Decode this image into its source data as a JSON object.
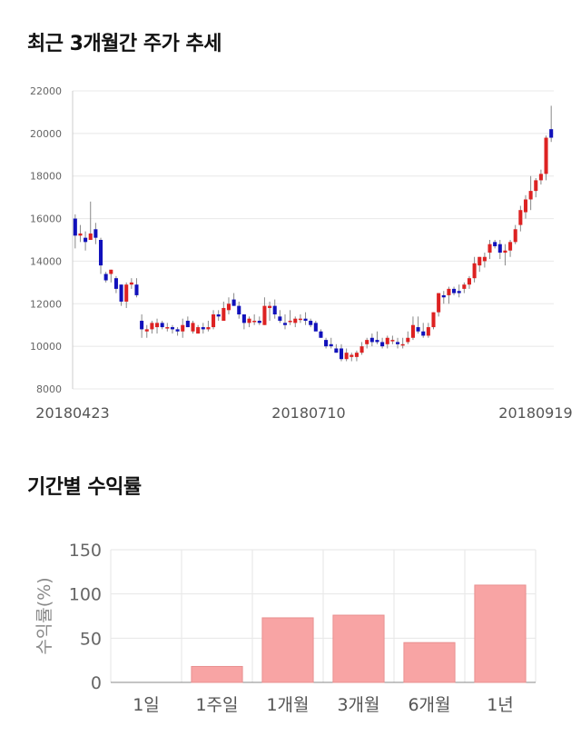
{
  "titles": {
    "price_chart": "최근 3개월간 주가 추세",
    "return_chart": "기간별 수익률"
  },
  "chart_data": [
    {
      "type": "candlestick",
      "title": "최근 3개월간 주가 추세",
      "ylim": [
        8000,
        22000
      ],
      "yticks": [
        8000,
        10000,
        12000,
        14000,
        16000,
        18000,
        20000,
        22000
      ],
      "xtick_labels": [
        "20180423",
        "20180710",
        "20180919"
      ],
      "grid": true,
      "colors": {
        "up": "#dd2222",
        "down": "#1111bb",
        "wick": "#888888"
      },
      "ohlc": [
        [
          16000,
          16200,
          14600,
          15200
        ],
        [
          15200,
          15700,
          14900,
          15300
        ],
        [
          15100,
          15400,
          14500,
          14900
        ],
        [
          15000,
          16800,
          15000,
          15300
        ],
        [
          15500,
          15800,
          14800,
          15100
        ],
        [
          15000,
          15100,
          13400,
          13800
        ],
        [
          13400,
          13500,
          13000,
          13100
        ],
        [
          13400,
          13600,
          13000,
          13600
        ],
        [
          13200,
          13300,
          12500,
          12700
        ],
        [
          12900,
          12900,
          11900,
          12100
        ],
        [
          12100,
          13000,
          11800,
          12900
        ],
        [
          12900,
          13200,
          12700,
          13000
        ],
        [
          12900,
          13200,
          12300,
          12400
        ],
        [
          11200,
          11500,
          10400,
          10800
        ],
        [
          10700,
          11000,
          10400,
          10800
        ],
        [
          10800,
          11200,
          10600,
          11100
        ],
        [
          10900,
          11300,
          10600,
          11100
        ],
        [
          11100,
          11200,
          10800,
          10900
        ],
        [
          10900,
          11100,
          10700,
          10900
        ],
        [
          10900,
          11000,
          10600,
          10800
        ],
        [
          10800,
          10900,
          10500,
          10700
        ],
        [
          10700,
          11300,
          10400,
          11000
        ],
        [
          11200,
          11400,
          10900,
          10900
        ],
        [
          10700,
          11200,
          10600,
          11100
        ],
        [
          10600,
          11000,
          10600,
          10900
        ],
        [
          10900,
          11100,
          10600,
          10800
        ],
        [
          10800,
          11200,
          10700,
          10900
        ],
        [
          10900,
          11700,
          10800,
          11500
        ],
        [
          11500,
          11700,
          11200,
          11400
        ],
        [
          11200,
          12100,
          11200,
          11800
        ],
        [
          11700,
          12300,
          11500,
          12000
        ],
        [
          12200,
          12500,
          11900,
          11900
        ],
        [
          11900,
          12100,
          11300,
          11500
        ],
        [
          11500,
          11500,
          10800,
          11100
        ],
        [
          11100,
          11400,
          10900,
          11300
        ],
        [
          11200,
          11500,
          11000,
          11200
        ],
        [
          11200,
          11400,
          11000,
          11100
        ],
        [
          11000,
          12300,
          11000,
          11900
        ],
        [
          11800,
          12100,
          11200,
          11900
        ],
        [
          11900,
          12200,
          11300,
          11500
        ],
        [
          11400,
          11700,
          11100,
          11200
        ],
        [
          11100,
          11500,
          10800,
          11000
        ],
        [
          11200,
          11700,
          11000,
          11200
        ],
        [
          11100,
          11400,
          10900,
          11300
        ],
        [
          11300,
          11500,
          11100,
          11300
        ],
        [
          11300,
          11600,
          11000,
          11200
        ],
        [
          11200,
          11300,
          10900,
          11000
        ],
        [
          11100,
          11200,
          10800,
          10700
        ],
        [
          10700,
          10800,
          10400,
          10400
        ],
        [
          10300,
          10400,
          9900,
          10000
        ],
        [
          10100,
          10400,
          9900,
          10000
        ],
        [
          9900,
          10100,
          9700,
          9700
        ],
        [
          9900,
          10100,
          9300,
          9400
        ],
        [
          9400,
          9900,
          9300,
          9700
        ],
        [
          9500,
          9700,
          9300,
          9600
        ],
        [
          9500,
          9800,
          9300,
          9700
        ],
        [
          9700,
          10200,
          9600,
          10000
        ],
        [
          10100,
          10400,
          9900,
          10300
        ],
        [
          10400,
          10600,
          10000,
          10200
        ],
        [
          10300,
          10700,
          10100,
          10200
        ],
        [
          10200,
          10400,
          9900,
          10000
        ],
        [
          10100,
          10500,
          9900,
          10400
        ],
        [
          10300,
          10500,
          10100,
          10300
        ],
        [
          10200,
          10400,
          9900,
          10100
        ],
        [
          10100,
          10400,
          9900,
          10100
        ],
        [
          10200,
          10700,
          10100,
          10400
        ],
        [
          10400,
          11400,
          10300,
          11000
        ],
        [
          10900,
          11400,
          10600,
          10700
        ],
        [
          10700,
          11100,
          10400,
          10500
        ],
        [
          10500,
          11100,
          10400,
          10900
        ],
        [
          10900,
          11600,
          10800,
          11600
        ],
        [
          11600,
          12500,
          11400,
          12500
        ],
        [
          12400,
          12600,
          12000,
          12300
        ],
        [
          12400,
          12800,
          12000,
          12700
        ],
        [
          12700,
          12800,
          12400,
          12500
        ],
        [
          12600,
          12900,
          12300,
          12500
        ],
        [
          12700,
          13000,
          12500,
          12900
        ],
        [
          12900,
          13300,
          12700,
          13200
        ],
        [
          13200,
          14200,
          13000,
          13900
        ],
        [
          13800,
          14200,
          13500,
          14200
        ],
        [
          14000,
          14400,
          13700,
          14200
        ],
        [
          14400,
          15000,
          14100,
          14800
        ],
        [
          14900,
          15000,
          14600,
          14700
        ],
        [
          14800,
          15000,
          14100,
          14400
        ],
        [
          14400,
          14800,
          13800,
          14500
        ],
        [
          14500,
          15000,
          14200,
          14900
        ],
        [
          14900,
          15700,
          14800,
          15500
        ],
        [
          15700,
          16600,
          15400,
          16400
        ],
        [
          16300,
          17100,
          16000,
          16900
        ],
        [
          16900,
          18000,
          16400,
          17300
        ],
        [
          17300,
          17900,
          17000,
          17800
        ],
        [
          17800,
          18300,
          17600,
          18100
        ],
        [
          18100,
          19900,
          17800,
          19800
        ],
        [
          20200,
          21300,
          19600,
          19800
        ]
      ]
    },
    {
      "type": "bar",
      "title": "기간별 수익률",
      "ylabel": "수익률(%)",
      "categories": [
        "1일",
        "1주일",
        "1개월",
        "3개월",
        "6개월",
        "1년"
      ],
      "values": [
        0,
        18,
        73,
        76,
        45,
        110
      ],
      "ylim": [
        0,
        150
      ],
      "yticks": [
        0,
        50,
        100,
        150
      ],
      "grid": true,
      "colors": {
        "bar": "#f8a4a4",
        "bar_edge": "#e89090"
      }
    }
  ]
}
